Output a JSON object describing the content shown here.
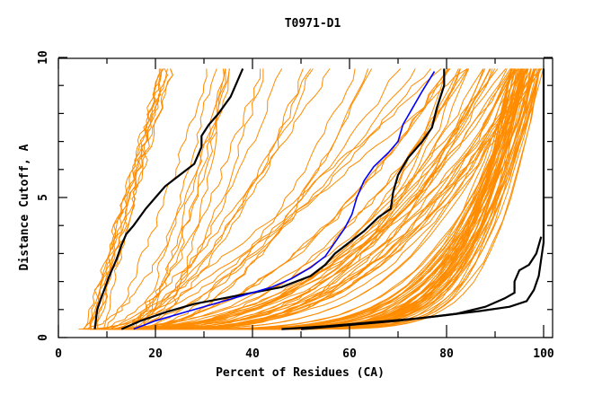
{
  "chart_data": {
    "type": "line",
    "title": "T0971-D1",
    "xlabel": "Percent of Residues (CA)",
    "ylabel": "Distance Cutoff, A",
    "xlim": [
      0,
      100
    ],
    "ylim": [
      0,
      10
    ],
    "x_ticks": [
      0,
      20,
      40,
      60,
      80,
      100
    ],
    "x_minor_ticks": [
      10,
      30,
      50,
      70,
      90
    ],
    "y_ticks": [
      0,
      5,
      10
    ],
    "y_minor_ticks": [
      1,
      2,
      3,
      4,
      6,
      7,
      8,
      9
    ],
    "grid": false,
    "legend": "none",
    "colors": {
      "background_models": "#ff8c00",
      "highlight_blue": "#0000ff",
      "highlight_black": "#000000"
    },
    "background_series_description": "Many orange GDT curves for submitted models, ranging from steep (reach ~10 A near 22-40%) to near-complete (reach ~100% at 1-3 A)",
    "background_series_count": 120,
    "series": [
      {
        "name": "black-left",
        "color": "#000000",
        "x": [
          7.5,
          8,
          9,
          10.5,
          12,
          13,
          14,
          15.5,
          18,
          20,
          22,
          25,
          28,
          29.5,
          29.5,
          31,
          33,
          35.5,
          38
        ],
        "y": [
          0.3,
          1.0,
          1.5,
          2.2,
          2.8,
          3.3,
          3.7,
          4.0,
          4.6,
          5.0,
          5.4,
          5.8,
          6.2,
          6.8,
          7.2,
          7.6,
          8.0,
          8.6,
          9.6
        ]
      },
      {
        "name": "black-mid",
        "color": "#000000",
        "x": [
          13,
          17,
          22,
          28,
          34,
          40,
          46,
          52,
          55,
          57,
          60,
          63,
          66,
          68.5,
          69,
          70,
          72,
          75,
          77,
          78,
          79.5,
          79.5
        ],
        "y": [
          0.3,
          0.6,
          0.9,
          1.2,
          1.4,
          1.6,
          1.8,
          2.2,
          2.6,
          3.0,
          3.4,
          3.8,
          4.3,
          4.6,
          5.2,
          5.8,
          6.4,
          7.0,
          7.5,
          8.2,
          9.0,
          9.6
        ]
      },
      {
        "name": "blue",
        "color": "#0000ff",
        "x": [
          15.5,
          20,
          26,
          32,
          38,
          44,
          48,
          52,
          55,
          57,
          59,
          60.5,
          61.5,
          63,
          65,
          68,
          70,
          71,
          73,
          75,
          77.5
        ],
        "y": [
          0.3,
          0.6,
          0.9,
          1.2,
          1.5,
          1.8,
          2.1,
          2.5,
          2.9,
          3.4,
          3.9,
          4.4,
          5.0,
          5.6,
          6.1,
          6.6,
          7.0,
          7.6,
          8.2,
          8.8,
          9.5
        ]
      },
      {
        "name": "black-right-a",
        "color": "#000000",
        "x": [
          46,
          55,
          65,
          75,
          82,
          88,
          92,
          94,
          94,
          95,
          97,
          98.5,
          99.5
        ],
        "y": [
          0.3,
          0.4,
          0.55,
          0.7,
          0.85,
          1.1,
          1.4,
          1.6,
          2.0,
          2.4,
          2.6,
          3.0,
          3.6
        ]
      },
      {
        "name": "black-right-b",
        "color": "#000000",
        "x": [
          50,
          60,
          70,
          80,
          87,
          93,
          96.5,
          98,
          99,
          99.5,
          100,
          100
        ],
        "y": [
          0.3,
          0.45,
          0.6,
          0.8,
          0.95,
          1.1,
          1.3,
          1.7,
          2.2,
          2.8,
          3.4,
          9.6
        ]
      }
    ]
  }
}
